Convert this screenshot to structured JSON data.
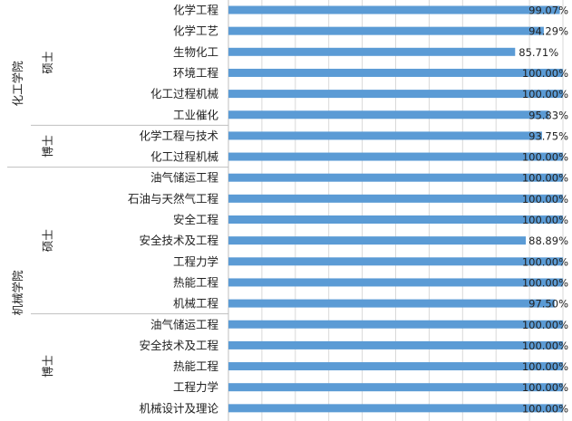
{
  "chart_data": {
    "type": "bar",
    "orientation": "horizontal",
    "xlim": [
      0,
      100
    ],
    "grid": true,
    "categories": [
      "化学工程",
      "化学工艺",
      "生物化工",
      "环境工程",
      "化工过程机械",
      "工业催化",
      "化学工程与技术",
      "化工过程机械",
      "油气储运工程",
      "石油与天然气工程",
      "安全工程",
      "安全技术及工程",
      "工程力学",
      "热能工程",
      "机械工程",
      "油气储运工程",
      "安全技术及工程",
      "热能工程",
      "工程力学",
      "机械设计及理论"
    ],
    "values": [
      99.07,
      94.29,
      85.71,
      100,
      100,
      95.83,
      93.75,
      100,
      100,
      100,
      100,
      88.89,
      100,
      100,
      97.5,
      100,
      100,
      100,
      100,
      100
    ],
    "data_labels": [
      "99.07%",
      "94.29%",
      "85.71%",
      "100.00%",
      "100.00%",
      "95.83%",
      "93.75%",
      "100.00%",
      "100.00%",
      "100.00%",
      "100.00%",
      "88.89%",
      "100.00%",
      "100.00%",
      "97.50%",
      "100.00%",
      "100.00%",
      "100.00%",
      "100.00%",
      "100.00%"
    ],
    "colors": {
      "bar": "#5b9bd5",
      "grid": "#d9d9d9",
      "axis": "#bfbfbf"
    },
    "groups": [
      {
        "college": "化工学院",
        "levels": [
          {
            "degree": "硕士",
            "start": 0,
            "end": 5
          },
          {
            "degree": "博士",
            "start": 6,
            "end": 7
          }
        ]
      },
      {
        "college": "机械学院",
        "levels": [
          {
            "degree": "硕士",
            "start": 8,
            "end": 14
          },
          {
            "degree": "博士",
            "start": 15,
            "end": 19
          }
        ]
      }
    ]
  }
}
